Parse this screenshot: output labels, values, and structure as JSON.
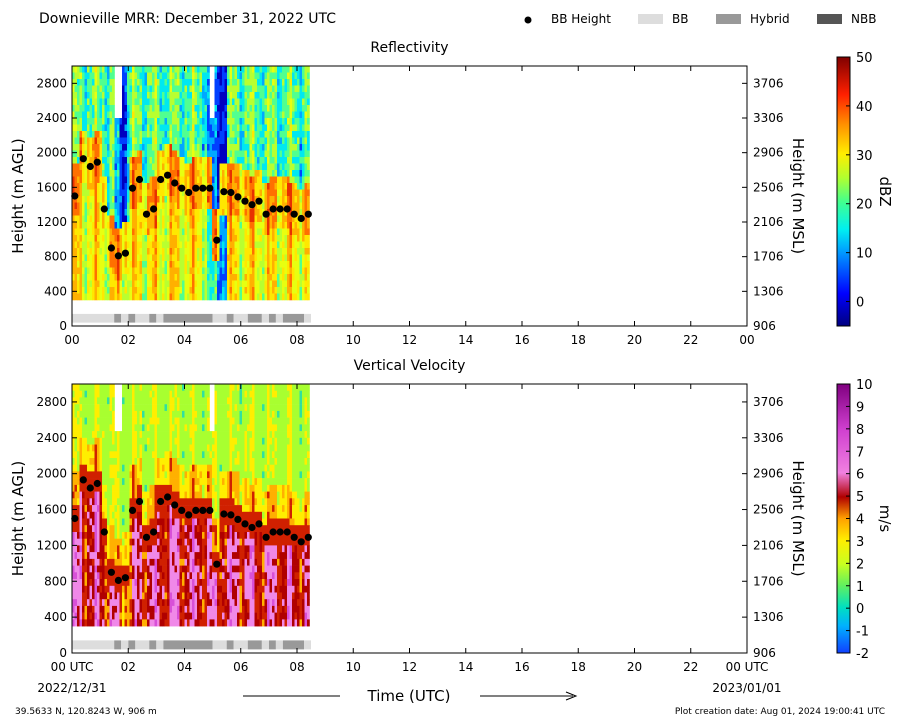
{
  "header": {
    "title": "Downieville MRR:  December 31, 2022 UTC",
    "legend": [
      {
        "label": "BB Height",
        "kind": "dot",
        "color": "#000000"
      },
      {
        "label": "BB",
        "kind": "box",
        "color": "#dddddd"
      },
      {
        "label": "Hybrid",
        "kind": "box",
        "color": "#999999"
      },
      {
        "label": "NBB",
        "kind": "box",
        "color": "#555555"
      }
    ]
  },
  "footer": {
    "start_time": "00 UTC",
    "start_date": "2022/12/31",
    "end_time": "00 UTC",
    "end_date": "2023/01/01",
    "xlabel": "Time (UTC)",
    "location": "39.5633 N, 120.8243 W, 906 m",
    "created": "Plot creation date: Aug 01, 2024 19:00:41 UTC"
  },
  "chart_data": [
    {
      "type": "heatmap",
      "title": "Reflectivity",
      "ylabel": "Height (m AGL)",
      "ylabel_right": "Height (m MSL)",
      "xlim": [
        0,
        24
      ],
      "ylim": [
        0,
        3000
      ],
      "x_ticks": [
        "00",
        "02",
        "04",
        "06",
        "08",
        "10",
        "12",
        "14",
        "16",
        "18",
        "20",
        "22",
        "00"
      ],
      "y_ticks": [
        0,
        400,
        800,
        1200,
        1600,
        2000,
        2400,
        2800
      ],
      "y_ticks_right": [
        "906",
        "1306",
        "1706",
        "2106",
        "2506",
        "2906",
        "3306",
        "3706"
      ],
      "data_extent_hours": [
        0,
        8.45
      ],
      "data_extent_height": [
        300,
        3000
      ],
      "colorbar": {
        "label": "dBZ",
        "ticks": [
          0,
          10,
          20,
          30,
          40,
          50
        ],
        "range": [
          -5,
          50
        ]
      },
      "bb_height": {
        "x": [
          0.1,
          0.4,
          0.65,
          0.9,
          1.15,
          1.4,
          1.65,
          1.9,
          2.15,
          2.4,
          2.65,
          2.9,
          3.15,
          3.4,
          3.65,
          3.9,
          4.15,
          4.4,
          4.65,
          4.9,
          5.15,
          5.4,
          5.65,
          5.9,
          6.15,
          6.4,
          6.65,
          6.9,
          7.15,
          7.4,
          7.65,
          7.9,
          8.15,
          8.4
        ],
        "y": [
          1500,
          1930,
          1840,
          1890,
          1350,
          900,
          810,
          840,
          1590,
          1690,
          1290,
          1350,
          1690,
          1740,
          1650,
          1590,
          1540,
          1590,
          1590,
          1590,
          990,
          1550,
          1540,
          1490,
          1440,
          1400,
          1440,
          1290,
          1350,
          1350,
          1350,
          1290,
          1240,
          1290
        ]
      },
      "bb_type": [
        {
          "start": 0,
          "end": 1.5,
          "type": "BB"
        },
        {
          "start": 1.5,
          "end": 1.75,
          "type": "Hybrid"
        },
        {
          "start": 1.75,
          "end": 2.0,
          "type": "BB"
        },
        {
          "start": 2.0,
          "end": 2.25,
          "type": "Hybrid"
        },
        {
          "start": 2.25,
          "end": 2.75,
          "type": "BB"
        },
        {
          "start": 2.75,
          "end": 3.0,
          "type": "Hybrid"
        },
        {
          "start": 3.0,
          "end": 3.25,
          "type": "BB"
        },
        {
          "start": 3.25,
          "end": 5.0,
          "type": "Hybrid"
        },
        {
          "start": 5.0,
          "end": 5.5,
          "type": "BB"
        },
        {
          "start": 5.5,
          "end": 5.75,
          "type": "Hybrid"
        },
        {
          "start": 5.75,
          "end": 6.25,
          "type": "BB"
        },
        {
          "start": 6.25,
          "end": 6.75,
          "type": "Hybrid"
        },
        {
          "start": 6.75,
          "end": 7.0,
          "type": "BB"
        },
        {
          "start": 7.0,
          "end": 7.25,
          "type": "Hybrid"
        },
        {
          "start": 7.25,
          "end": 7.5,
          "type": "BB"
        },
        {
          "start": 7.5,
          "end": 8.25,
          "type": "Hybrid"
        },
        {
          "start": 8.25,
          "end": 8.5,
          "type": "BB"
        }
      ]
    },
    {
      "type": "heatmap",
      "title": "Vertical Velocity",
      "ylabel": "Height (m AGL)",
      "ylabel_right": "Height (m MSL)",
      "xlim": [
        0,
        24
      ],
      "ylim": [
        0,
        3000
      ],
      "x_ticks": [
        "00 UTC",
        "02",
        "04",
        "06",
        "08",
        "10",
        "12",
        "14",
        "16",
        "18",
        "20",
        "22",
        "00 UTC"
      ],
      "y_ticks": [
        0,
        400,
        800,
        1200,
        1600,
        2000,
        2400,
        2800
      ],
      "y_ticks_right": [
        "906",
        "1306",
        "1706",
        "2106",
        "2506",
        "2906",
        "3306",
        "3706"
      ],
      "data_extent_hours": [
        0,
        8.45
      ],
      "data_extent_height": [
        300,
        3000
      ],
      "colorbar": {
        "label": "m/s",
        "ticks": [
          -2,
          -1,
          0,
          1,
          2,
          3,
          4,
          5,
          6,
          7,
          8,
          9,
          10
        ],
        "range": [
          -2,
          10
        ]
      },
      "bb_height": {
        "x": [
          0.1,
          0.4,
          0.65,
          0.9,
          1.15,
          1.4,
          1.65,
          1.9,
          2.15,
          2.4,
          2.65,
          2.9,
          3.15,
          3.4,
          3.65,
          3.9,
          4.15,
          4.4,
          4.65,
          4.9,
          5.15,
          5.4,
          5.65,
          5.9,
          6.15,
          6.4,
          6.65,
          6.9,
          7.15,
          7.4,
          7.65,
          7.9,
          8.15,
          8.4
        ],
        "y": [
          1500,
          1930,
          1840,
          1890,
          1350,
          900,
          810,
          840,
          1590,
          1690,
          1290,
          1350,
          1690,
          1740,
          1650,
          1590,
          1540,
          1590,
          1590,
          1590,
          990,
          1550,
          1540,
          1490,
          1440,
          1400,
          1440,
          1290,
          1350,
          1350,
          1350,
          1290,
          1240,
          1290
        ]
      },
      "bb_type": [
        {
          "start": 0,
          "end": 1.5,
          "type": "BB"
        },
        {
          "start": 1.5,
          "end": 1.75,
          "type": "Hybrid"
        },
        {
          "start": 1.75,
          "end": 2.0,
          "type": "BB"
        },
        {
          "start": 2.0,
          "end": 2.25,
          "type": "Hybrid"
        },
        {
          "start": 2.25,
          "end": 2.75,
          "type": "BB"
        },
        {
          "start": 2.75,
          "end": 3.0,
          "type": "Hybrid"
        },
        {
          "start": 3.0,
          "end": 3.25,
          "type": "BB"
        },
        {
          "start": 3.25,
          "end": 5.0,
          "type": "Hybrid"
        },
        {
          "start": 5.0,
          "end": 5.5,
          "type": "BB"
        },
        {
          "start": 5.5,
          "end": 5.75,
          "type": "Hybrid"
        },
        {
          "start": 5.75,
          "end": 6.25,
          "type": "BB"
        },
        {
          "start": 6.25,
          "end": 6.75,
          "type": "Hybrid"
        },
        {
          "start": 6.75,
          "end": 7.0,
          "type": "BB"
        },
        {
          "start": 7.0,
          "end": 7.25,
          "type": "Hybrid"
        },
        {
          "start": 7.25,
          "end": 7.5,
          "type": "BB"
        },
        {
          "start": 7.5,
          "end": 8.25,
          "type": "Hybrid"
        },
        {
          "start": 8.25,
          "end": 8.5,
          "type": "BB"
        }
      ]
    }
  ]
}
